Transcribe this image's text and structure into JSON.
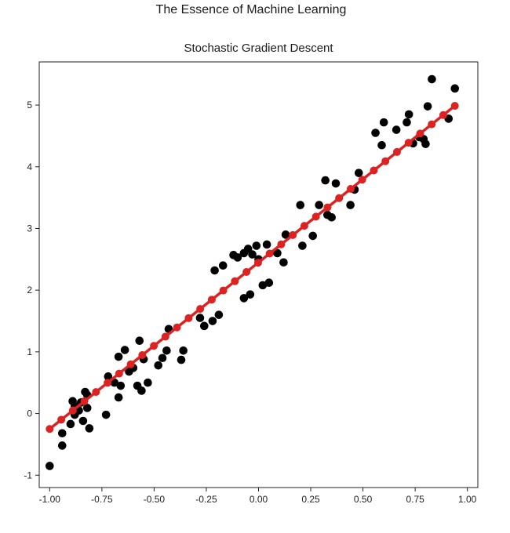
{
  "suptitle": "The Essence of Machine Learning",
  "chart_data": {
    "type": "scatter",
    "title": "Stochastic Gradient Descent",
    "xlabel": "",
    "ylabel": "",
    "xlim": [
      -1.05,
      1.05
    ],
    "ylim": [
      -1.2,
      5.7
    ],
    "xticks": [
      -1.0,
      -0.75,
      -0.5,
      -0.25,
      0.0,
      0.25,
      0.5,
      0.75,
      1.0
    ],
    "xtick_labels": [
      "-1.00",
      "-0.75",
      "-0.50",
      "-0.25",
      "0.00",
      "0.25",
      "0.50",
      "0.75",
      "1.00"
    ],
    "yticks": [
      -1,
      0,
      1,
      2,
      3,
      4,
      5
    ],
    "ytick_labels": [
      "-1",
      "0",
      "1",
      "2",
      "3",
      "4",
      "5"
    ],
    "grid": false,
    "series": [
      {
        "kind": "scatter",
        "color": "#000000",
        "points": [
          [
            -1.0,
            -0.85
          ],
          [
            -0.94,
            -0.52
          ],
          [
            -0.94,
            -0.32
          ],
          [
            -0.9,
            -0.17
          ],
          [
            -0.89,
            0.2
          ],
          [
            -0.88,
            0.12
          ],
          [
            -0.88,
            -0.02
          ],
          [
            -0.86,
            0.05
          ],
          [
            -0.85,
            0.18
          ],
          [
            -0.84,
            -0.12
          ],
          [
            -0.83,
            0.35
          ],
          [
            -0.82,
            0.3
          ],
          [
            -0.82,
            0.09
          ],
          [
            -0.81,
            -0.24
          ],
          [
            -0.73,
            -0.02
          ],
          [
            -0.72,
            0.6
          ],
          [
            -0.69,
            0.5
          ],
          [
            -0.67,
            0.26
          ],
          [
            -0.67,
            0.92
          ],
          [
            -0.66,
            0.45
          ],
          [
            -0.64,
            1.03
          ],
          [
            -0.62,
            0.68
          ],
          [
            -0.6,
            0.74
          ],
          [
            -0.58,
            0.45
          ],
          [
            -0.57,
            1.18
          ],
          [
            -0.56,
            0.37
          ],
          [
            -0.55,
            0.88
          ],
          [
            -0.53,
            0.5
          ],
          [
            -0.48,
            0.78
          ],
          [
            -0.46,
            0.9
          ],
          [
            -0.44,
            1.02
          ],
          [
            -0.43,
            1.37
          ],
          [
            -0.37,
            0.87
          ],
          [
            -0.36,
            1.02
          ],
          [
            -0.28,
            1.55
          ],
          [
            -0.26,
            1.42
          ],
          [
            -0.22,
            1.5
          ],
          [
            -0.21,
            2.32
          ],
          [
            -0.19,
            1.6
          ],
          [
            -0.17,
            2.4
          ],
          [
            -0.12,
            2.57
          ],
          [
            -0.1,
            2.53
          ],
          [
            -0.07,
            2.6
          ],
          [
            -0.07,
            1.87
          ],
          [
            -0.05,
            2.67
          ],
          [
            -0.04,
            1.93
          ],
          [
            -0.03,
            2.58
          ],
          [
            -0.01,
            2.72
          ],
          [
            0.0,
            2.5
          ],
          [
            0.02,
            2.08
          ],
          [
            0.04,
            2.74
          ],
          [
            0.05,
            2.12
          ],
          [
            0.09,
            2.6
          ],
          [
            0.12,
            2.45
          ],
          [
            0.13,
            2.9
          ],
          [
            0.2,
            3.38
          ],
          [
            0.21,
            2.72
          ],
          [
            0.26,
            2.88
          ],
          [
            0.29,
            3.38
          ],
          [
            0.32,
            3.78
          ],
          [
            0.33,
            3.22
          ],
          [
            0.35,
            3.18
          ],
          [
            0.37,
            3.73
          ],
          [
            0.44,
            3.38
          ],
          [
            0.46,
            3.63
          ],
          [
            0.48,
            3.9
          ],
          [
            0.56,
            4.55
          ],
          [
            0.59,
            4.35
          ],
          [
            0.6,
            4.72
          ],
          [
            0.66,
            4.6
          ],
          [
            0.71,
            4.72
          ],
          [
            0.72,
            4.85
          ],
          [
            0.74,
            4.38
          ],
          [
            0.77,
            4.48
          ],
          [
            0.79,
            4.45
          ],
          [
            0.8,
            4.37
          ],
          [
            0.81,
            4.98
          ],
          [
            0.83,
            5.42
          ],
          [
            0.91,
            4.78
          ],
          [
            0.94,
            5.27
          ]
        ]
      },
      {
        "kind": "line",
        "color": "#dd2222",
        "slope": 2.7,
        "intercept": 2.45,
        "x_range": [
          -1.0,
          0.94
        ],
        "marker_count": 36
      }
    ]
  }
}
